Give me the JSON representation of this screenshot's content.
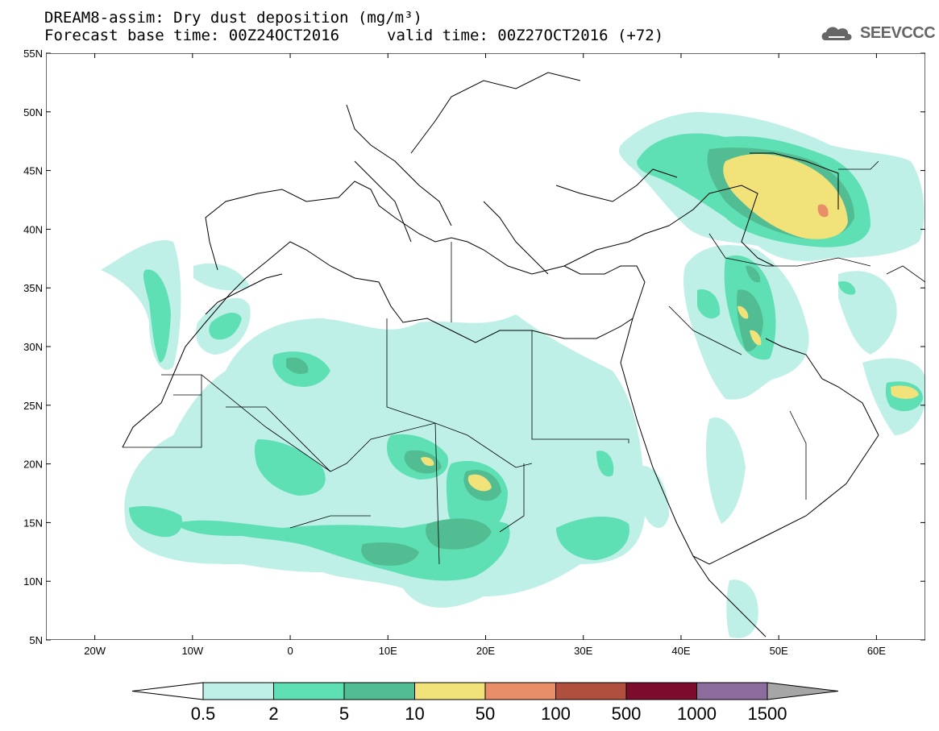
{
  "title": {
    "line1": "DREAM8-assim: Dry dust deposition (mg/m³)",
    "line2": "Forecast base time: 00Z24OCT2016",
    "valid": "valid time: 00Z27OCT2016 (+72)"
  },
  "logo": {
    "icon": "cloud-icon",
    "text": "SEEVCCC"
  },
  "axes": {
    "lat_labels": [
      "55N",
      "50N",
      "45N",
      "40N",
      "35N",
      "30N",
      "25N",
      "20N",
      "15N",
      "10N",
      "5N"
    ],
    "lat_values": [
      55,
      50,
      45,
      40,
      35,
      30,
      25,
      20,
      15,
      10,
      5
    ],
    "lon_labels": [
      "20W",
      "10W",
      "0",
      "10E",
      "20E",
      "30E",
      "40E",
      "50E",
      "60E"
    ],
    "lon_values": [
      -20,
      -10,
      0,
      10,
      20,
      30,
      40,
      50,
      60
    ],
    "lon_range": [
      -25,
      65
    ],
    "lat_range": [
      5,
      55
    ],
    "grid": false
  },
  "legend": {
    "labels": [
      "0.5",
      "2",
      "5",
      "10",
      "50",
      "100",
      "500",
      "1000",
      "1500"
    ],
    "colors": [
      "#bff0e8",
      "#5fe0b4",
      "#52bd92",
      "#f2e27a",
      "#e88f6a",
      "#b14f3f",
      "#7d0b2c",
      "#8c6c9c",
      "#a6a6a6"
    ],
    "over_color": "#a6a6a6",
    "under_color": "#ffffff"
  }
}
